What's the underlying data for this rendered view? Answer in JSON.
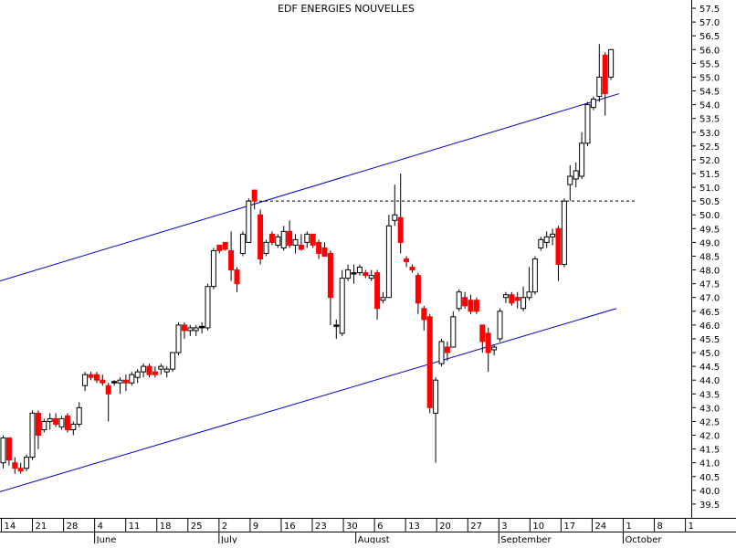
{
  "chart_data": {
    "type": "candlestick",
    "title": "EDF ENERGIES NOUVELLES",
    "ylim": [
      39,
      57.8
    ],
    "ytick_values": [
      39.5,
      40.0,
      40.5,
      41.0,
      41.5,
      42.0,
      42.5,
      43.0,
      43.5,
      44.0,
      44.5,
      45.0,
      45.5,
      46.0,
      46.5,
      47.0,
      47.5,
      48.0,
      48.5,
      49.0,
      49.5,
      50.0,
      50.5,
      51.0,
      51.5,
      52.0,
      52.5,
      53.0,
      53.5,
      54.0,
      54.5,
      55.0,
      55.5,
      56.0,
      56.5,
      57.0,
      57.5
    ],
    "ytick_labels": [
      "39.5",
      "40.0",
      "40.5",
      "41.0",
      "41.5",
      "42.0",
      "42.5",
      "43.0",
      "43.5",
      "44.0",
      "44.5",
      "45.0",
      "45.5",
      "46.0",
      "46.5",
      "47.0",
      "47.5",
      "48.0",
      "48.5",
      "49.0",
      "49.5",
      "50.0",
      "50.5",
      "51.0",
      "51.5",
      "52.0",
      "52.5",
      "53.0",
      "53.5",
      "54.0",
      "54.5",
      "55.0",
      "55.5",
      "56.0",
      "56.5",
      "57.0",
      "57.5"
    ],
    "xtick_labels": [
      "14",
      "21",
      "28",
      "4",
      "11",
      "18",
      "25",
      "2",
      "9",
      "16",
      "23",
      "30",
      "6",
      "13",
      "20",
      "27",
      "3",
      "10",
      "17",
      "24",
      "1",
      "8",
      "1"
    ],
    "months": [
      "June",
      "July",
      "August",
      "September",
      "October"
    ],
    "colors": {
      "up": "#ffffff",
      "down": "#ff0000",
      "flat": "#000000",
      "trendline": "#0000cc",
      "axis": "#000000"
    },
    "candles": [
      {
        "o": 41.0,
        "h": 42.0,
        "l": 40.8,
        "c": 41.9
      },
      {
        "o": 41.9,
        "h": 41.9,
        "l": 40.9,
        "c": 41.1
      },
      {
        "o": 41.0,
        "h": 41.2,
        "l": 40.6,
        "c": 40.8
      },
      {
        "o": 40.8,
        "h": 41.0,
        "l": 40.6,
        "c": 40.7
      },
      {
        "o": 40.8,
        "h": 41.3,
        "l": 40.7,
        "c": 41.2
      },
      {
        "o": 41.2,
        "h": 42.9,
        "l": 41.1,
        "c": 42.8
      },
      {
        "o": 42.8,
        "h": 42.9,
        "l": 41.5,
        "c": 42.0
      },
      {
        "o": 42.2,
        "h": 42.6,
        "l": 42.1,
        "c": 42.5
      },
      {
        "o": 42.5,
        "h": 42.8,
        "l": 42.2,
        "c": 42.6
      },
      {
        "o": 42.6,
        "h": 42.8,
        "l": 42.3,
        "c": 42.4
      },
      {
        "o": 42.3,
        "h": 42.7,
        "l": 42.2,
        "c": 42.6
      },
      {
        "o": 42.7,
        "h": 42.8,
        "l": 42.1,
        "c": 42.2
      },
      {
        "o": 42.2,
        "h": 42.5,
        "l": 42.0,
        "c": 42.4
      },
      {
        "o": 42.4,
        "h": 43.2,
        "l": 42.3,
        "c": 43.0
      },
      {
        "o": 43.8,
        "h": 44.3,
        "l": 43.6,
        "c": 44.2
      },
      {
        "o": 44.2,
        "h": 44.3,
        "l": 44.0,
        "c": 44.1
      },
      {
        "o": 44.2,
        "h": 44.3,
        "l": 43.9,
        "c": 44.0
      },
      {
        "o": 44.0,
        "h": 44.2,
        "l": 43.8,
        "c": 43.9
      },
      {
        "o": 43.8,
        "h": 43.9,
        "l": 42.5,
        "c": 43.5
      },
      {
        "o": 43.9,
        "h": 44.0,
        "l": 43.8,
        "c": 43.95
      },
      {
        "o": 43.9,
        "h": 44.1,
        "l": 43.5,
        "c": 44.0
      },
      {
        "o": 44.0,
        "h": 44.2,
        "l": 43.6,
        "c": 43.9
      },
      {
        "o": 43.9,
        "h": 44.3,
        "l": 43.8,
        "c": 44.2
      },
      {
        "o": 44.1,
        "h": 44.4,
        "l": 43.9,
        "c": 44.3
      },
      {
        "o": 44.3,
        "h": 44.6,
        "l": 44.1,
        "c": 44.5
      },
      {
        "o": 44.5,
        "h": 44.6,
        "l": 44.1,
        "c": 44.2
      },
      {
        "o": 44.3,
        "h": 44.5,
        "l": 44.1,
        "c": 44.2
      },
      {
        "o": 44.4,
        "h": 44.6,
        "l": 44.2,
        "c": 44.5
      },
      {
        "o": 44.3,
        "h": 44.5,
        "l": 44.1,
        "c": 44.4
      },
      {
        "o": 44.4,
        "h": 45.0,
        "l": 44.3,
        "c": 45.0
      },
      {
        "o": 45.0,
        "h": 46.1,
        "l": 44.9,
        "c": 46.0
      },
      {
        "o": 46.0,
        "h": 46.1,
        "l": 45.5,
        "c": 45.8
      },
      {
        "o": 45.8,
        "h": 46.0,
        "l": 45.6,
        "c": 45.9
      },
      {
        "o": 45.8,
        "h": 46.0,
        "l": 45.6,
        "c": 45.9
      },
      {
        "o": 45.9,
        "h": 46.1,
        "l": 45.7,
        "c": 45.95
      },
      {
        "o": 45.9,
        "h": 47.5,
        "l": 45.8,
        "c": 47.4
      },
      {
        "o": 47.4,
        "h": 48.8,
        "l": 47.3,
        "c": 48.7
      },
      {
        "o": 48.9,
        "h": 48.9,
        "l": 48.6,
        "c": 48.7
      },
      {
        "o": 49.0,
        "h": 49.0,
        "l": 48.7,
        "c": 48.75
      },
      {
        "o": 48.7,
        "h": 49.4,
        "l": 47.6,
        "c": 48.0
      },
      {
        "o": 48.0,
        "h": 48.1,
        "l": 47.2,
        "c": 47.5
      },
      {
        "o": 48.6,
        "h": 49.4,
        "l": 48.5,
        "c": 49.3
      },
      {
        "o": 49.0,
        "h": 50.6,
        "l": 49.0,
        "c": 50.5
      },
      {
        "o": 50.9,
        "h": 50.9,
        "l": 50.2,
        "c": 50.5
      },
      {
        "o": 50.0,
        "h": 50.2,
        "l": 48.2,
        "c": 48.4
      },
      {
        "o": 48.6,
        "h": 49.1,
        "l": 48.5,
        "c": 49.0
      },
      {
        "o": 49.3,
        "h": 49.4,
        "l": 48.9,
        "c": 49.0
      },
      {
        "o": 48.9,
        "h": 49.3,
        "l": 48.8,
        "c": 49.2
      },
      {
        "o": 48.8,
        "h": 49.6,
        "l": 48.7,
        "c": 49.4
      },
      {
        "o": 49.4,
        "h": 49.8,
        "l": 48.8,
        "c": 48.9
      },
      {
        "o": 48.9,
        "h": 49.3,
        "l": 48.6,
        "c": 49.1
      },
      {
        "o": 48.9,
        "h": 49.3,
        "l": 48.7,
        "c": 48.75
      },
      {
        "o": 49.0,
        "h": 49.4,
        "l": 48.8,
        "c": 49.3
      },
      {
        "o": 49.3,
        "h": 49.3,
        "l": 48.8,
        "c": 48.9
      },
      {
        "o": 49.0,
        "h": 49.1,
        "l": 48.4,
        "c": 48.6
      },
      {
        "o": 48.8,
        "h": 49.0,
        "l": 48.5,
        "c": 48.5
      },
      {
        "o": 48.6,
        "h": 48.7,
        "l": 46.0,
        "c": 47.0
      },
      {
        "o": 46.0,
        "h": 46.2,
        "l": 45.5,
        "c": 46.0
      },
      {
        "o": 45.7,
        "h": 48.0,
        "l": 45.6,
        "c": 47.7
      },
      {
        "o": 47.7,
        "h": 48.2,
        "l": 47.6,
        "c": 48.0
      },
      {
        "o": 47.9,
        "h": 48.2,
        "l": 47.5,
        "c": 47.9
      },
      {
        "o": 47.9,
        "h": 48.2,
        "l": 47.8,
        "c": 48.1
      },
      {
        "o": 47.9,
        "h": 48.0,
        "l": 47.7,
        "c": 47.8
      },
      {
        "o": 47.7,
        "h": 48.0,
        "l": 47.6,
        "c": 47.8
      },
      {
        "o": 47.9,
        "h": 48.0,
        "l": 46.2,
        "c": 46.6
      },
      {
        "o": 46.9,
        "h": 47.2,
        "l": 46.8,
        "c": 47.0
      },
      {
        "o": 47.0,
        "h": 50.0,
        "l": 47.0,
        "c": 49.6
      },
      {
        "o": 49.8,
        "h": 51.1,
        "l": 49.6,
        "c": 50.0
      },
      {
        "o": 49.9,
        "h": 51.5,
        "l": 48.6,
        "c": 49.0
      },
      {
        "o": 48.4,
        "h": 48.5,
        "l": 48.1,
        "c": 48.3
      },
      {
        "o": 48.1,
        "h": 48.2,
        "l": 47.9,
        "c": 48.0
      },
      {
        "o": 47.8,
        "h": 47.9,
        "l": 46.4,
        "c": 46.8
      },
      {
        "o": 46.6,
        "h": 46.7,
        "l": 45.8,
        "c": 46.2
      },
      {
        "o": 46.3,
        "h": 46.4,
        "l": 42.8,
        "c": 43.0
      },
      {
        "o": 42.8,
        "h": 44.1,
        "l": 41.0,
        "c": 44.0
      },
      {
        "o": 44.6,
        "h": 45.5,
        "l": 44.5,
        "c": 45.4
      },
      {
        "o": 45.2,
        "h": 45.4,
        "l": 44.7,
        "c": 45.0
      },
      {
        "o": 45.2,
        "h": 46.5,
        "l": 45.2,
        "c": 46.3
      },
      {
        "o": 46.6,
        "h": 47.3,
        "l": 46.5,
        "c": 47.2
      },
      {
        "o": 47.0,
        "h": 47.2,
        "l": 46.6,
        "c": 46.7
      },
      {
        "o": 46.9,
        "h": 47.1,
        "l": 46.4,
        "c": 46.5
      },
      {
        "o": 46.9,
        "h": 47.0,
        "l": 46.4,
        "c": 46.5
      },
      {
        "o": 46.0,
        "h": 46.0,
        "l": 45.0,
        "c": 45.4
      },
      {
        "o": 45.7,
        "h": 45.9,
        "l": 44.3,
        "c": 45.0
      },
      {
        "o": 45.1,
        "h": 45.3,
        "l": 44.9,
        "c": 45.2
      },
      {
        "o": 45.5,
        "h": 46.6,
        "l": 45.4,
        "c": 46.5
      },
      {
        "o": 47.0,
        "h": 47.2,
        "l": 46.8,
        "c": 47.1
      },
      {
        "o": 47.1,
        "h": 47.2,
        "l": 46.7,
        "c": 46.8
      },
      {
        "o": 47.0,
        "h": 47.2,
        "l": 46.6,
        "c": 46.9
      },
      {
        "o": 46.6,
        "h": 47.4,
        "l": 46.5,
        "c": 47.0
      },
      {
        "o": 47.0,
        "h": 48.1,
        "l": 46.9,
        "c": 47.2
      },
      {
        "o": 47.2,
        "h": 48.5,
        "l": 47.1,
        "c": 48.4
      },
      {
        "o": 48.8,
        "h": 49.2,
        "l": 48.7,
        "c": 49.1
      },
      {
        "o": 49.0,
        "h": 49.4,
        "l": 48.8,
        "c": 49.2
      },
      {
        "o": 49.2,
        "h": 49.5,
        "l": 48.9,
        "c": 49.3
      },
      {
        "o": 49.5,
        "h": 49.6,
        "l": 47.6,
        "c": 48.2
      },
      {
        "o": 48.2,
        "h": 50.6,
        "l": 48.1,
        "c": 50.5
      },
      {
        "o": 51.1,
        "h": 51.8,
        "l": 50.5,
        "c": 51.4
      },
      {
        "o": 51.3,
        "h": 51.9,
        "l": 51.0,
        "c": 51.6
      },
      {
        "o": 51.4,
        "h": 53.0,
        "l": 51.3,
        "c": 52.6
      },
      {
        "o": 52.6,
        "h": 54.1,
        "l": 52.5,
        "c": 54.0
      },
      {
        "o": 53.9,
        "h": 54.3,
        "l": 53.8,
        "c": 54.2
      },
      {
        "o": 54.3,
        "h": 56.2,
        "l": 54.1,
        "c": 55.0
      },
      {
        "o": 55.8,
        "h": 55.9,
        "l": 53.6,
        "c": 54.4
      },
      {
        "o": 55.0,
        "h": 56.0,
        "l": 54.9,
        "c": 56.0
      }
    ],
    "trendlines": [
      {
        "name": "upper-channel",
        "x0": 0.0,
        "y0": 47.6,
        "x1": 678.0,
        "y1": 54.4
      },
      {
        "name": "lower-channel",
        "x0": 0.0,
        "y0": 39.95,
        "x1": 675.0,
        "y1": 46.6
      },
      {
        "name": "resistance",
        "x0": 272.0,
        "y0": 50.5,
        "x1": 697.0,
        "y1": 50.5,
        "dashed": true
      }
    ]
  }
}
